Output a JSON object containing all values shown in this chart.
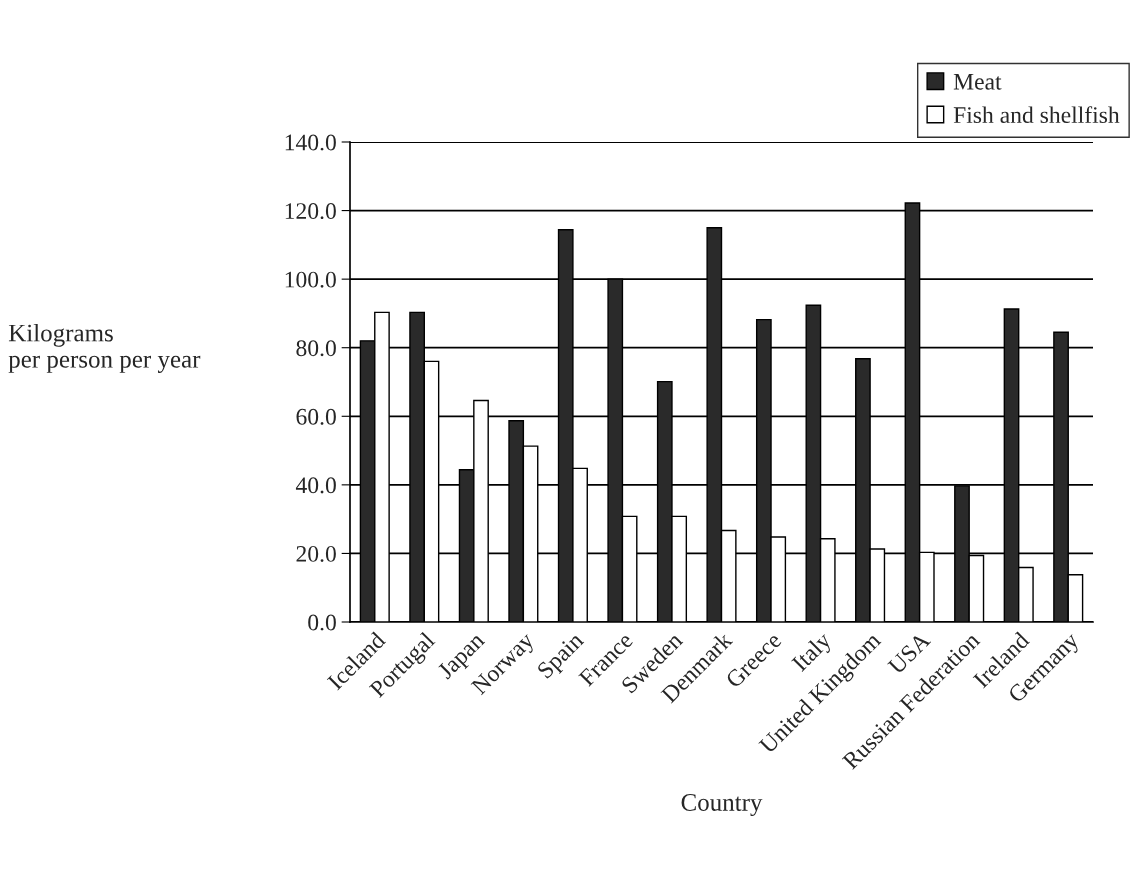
{
  "chart_data": {
    "type": "bar",
    "xlabel": "Country",
    "ylabel": "Kilograms\nper person per year",
    "categories": [
      "Iceland",
      "Portugal",
      "Japan",
      "Norway",
      "Spain",
      "France",
      "Sweden",
      "Denmark",
      "Greece",
      "Italy",
      "United Kingdom",
      "USA",
      "Russian Federation",
      "Ireland",
      "Germany"
    ],
    "series": [
      {
        "name": "Meat",
        "color": "#2a2a2a",
        "values": [
          82,
          90.3,
          44.4,
          58.7,
          114.4,
          100,
          70.1,
          115,
          88.2,
          92.4,
          76.8,
          122.2,
          39.7,
          91.3,
          84.5
        ]
      },
      {
        "name": "Fish and shellfish",
        "color": "#ffffff",
        "values": [
          90.3,
          76,
          64.6,
          51.3,
          44.8,
          30.8,
          30.8,
          26.7,
          24.8,
          24.3,
          21.3,
          20.3,
          19.4,
          15.9,
          13.8
        ]
      }
    ],
    "ylim": [
      0,
      140
    ],
    "yticks": [
      {
        "value": 0,
        "label": "0.0"
      },
      {
        "value": 20,
        "label": "20.0"
      },
      {
        "value": 40,
        "label": "40.0"
      },
      {
        "value": 60,
        "label": "60.0"
      },
      {
        "value": 80,
        "label": "80.0"
      },
      {
        "value": 100,
        "label": "100.0"
      },
      {
        "value": 120,
        "label": "120.0"
      },
      {
        "value": 140,
        "label": "140.0"
      }
    ],
    "grid": "y",
    "legend": "top right"
  }
}
